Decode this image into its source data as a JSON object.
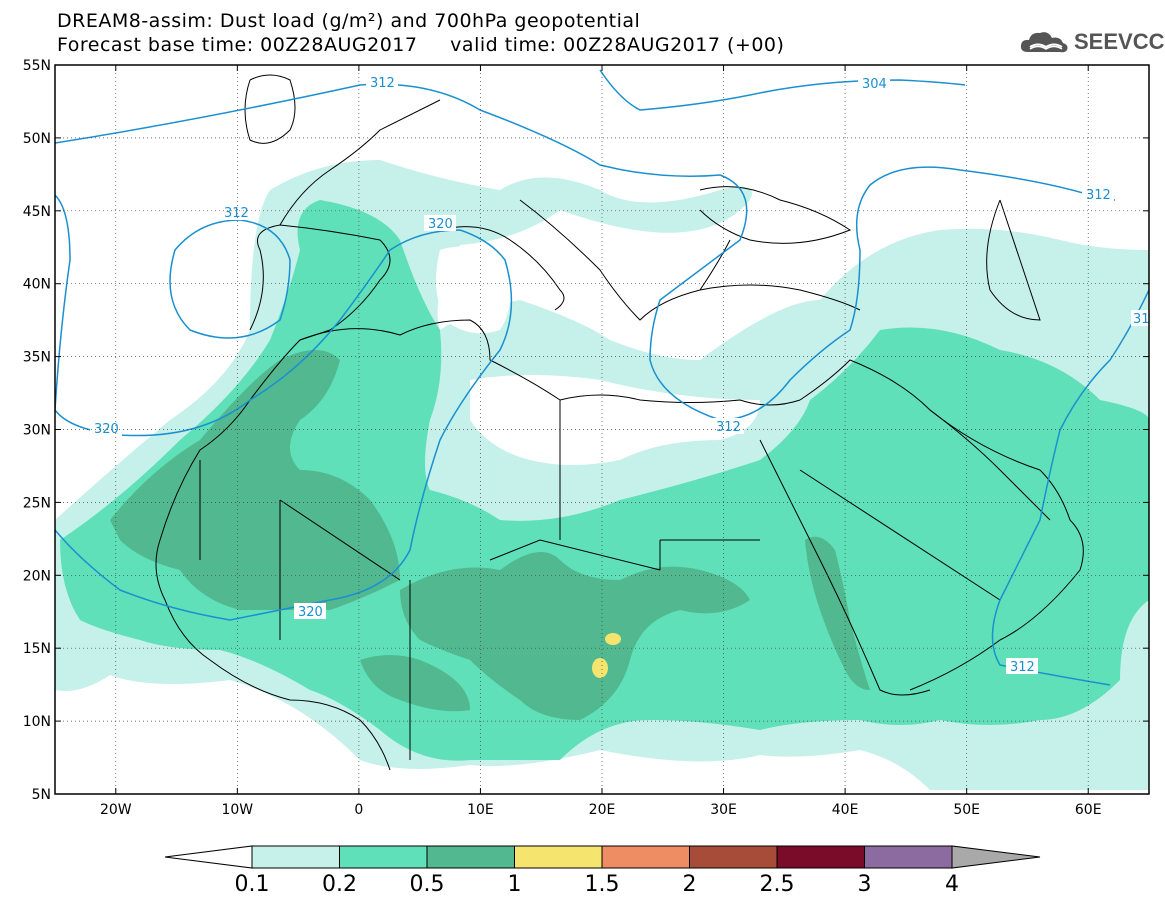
{
  "header": {
    "title_line1": "DREAM8-assim: Dust load (g/m²) and 700hPa geopotential",
    "title_line2": "Forecast base time: 00Z28AUG2017     valid time: 00Z28AUG2017 (+00)"
  },
  "logo": {
    "text": "SEEVCCC",
    "icon": "cloud-icon",
    "color": "#555555"
  },
  "map": {
    "lon_range": [
      -25,
      65
    ],
    "lat_range": [
      5,
      55
    ],
    "lat_ticks": [
      "55N",
      "50N",
      "45N",
      "40N",
      "35N",
      "30N",
      "25N",
      "20N",
      "15N",
      "10N",
      "5N"
    ],
    "lon_ticks": [
      "20W",
      "10W",
      "0",
      "10E",
      "20E",
      "30E",
      "40E",
      "50E",
      "60E"
    ],
    "contour_color": "#1a90d0",
    "contour_labels": [
      "312",
      "304",
      "312",
      "320",
      "312",
      "320",
      "320",
      "312",
      "31",
      "312"
    ]
  },
  "colorbar": {
    "ticks": [
      "0.1",
      "0.2",
      "0.5",
      "1",
      "1.5",
      "2",
      "2.5",
      "3",
      "4"
    ],
    "colors": [
      "#c6f0ea",
      "#5fe0b8",
      "#52b890",
      "#f5e56e",
      "#ee8c64",
      "#a84c3a",
      "#7a0c2a",
      "#8c6ca0"
    ],
    "under_color": "#ffffff",
    "over_color": "#a9a9a9"
  }
}
